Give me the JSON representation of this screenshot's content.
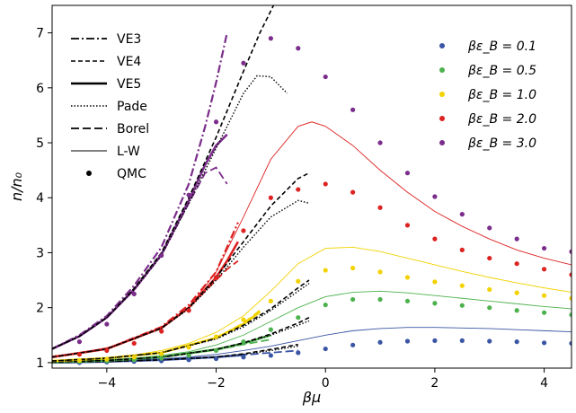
{
  "chart_data": {
    "type": "line",
    "xlabel": "βμ",
    "ylabel": "n/n₀",
    "xlim": [
      -5,
      4.5
    ],
    "ylim": [
      0.9,
      7.5
    ],
    "xticks": [
      -4,
      -2,
      0,
      2,
      4
    ],
    "yticks": [
      1,
      2,
      3,
      4,
      5,
      6,
      7
    ],
    "grid": false,
    "method_legend": {
      "placement": "top-left",
      "entries": [
        {
          "label": "VE3",
          "style": "dashdot"
        },
        {
          "label": "VE4",
          "style": "dashed"
        },
        {
          "label": "VE5",
          "style": "solid-thick"
        },
        {
          "label": "Pade",
          "style": "dotted"
        },
        {
          "label": "Borel",
          "style": "longdash"
        },
        {
          "label": "L-W",
          "style": "solid-thin"
        },
        {
          "label": "QMC",
          "style": "dot"
        }
      ]
    },
    "series_legend": {
      "placement": "top-right",
      "entries": [
        {
          "label": "βε_B = 0.1",
          "color": "#3a55a4"
        },
        {
          "label": "βε_B = 0.5",
          "color": "#4db24d"
        },
        {
          "label": "βε_B = 1.0",
          "color": "#f2d200"
        },
        {
          "label": "βε_B = 2.0",
          "color": "#dd2222"
        },
        {
          "label": "βε_B = 3.0",
          "color": "#7b2d8b"
        }
      ]
    },
    "series": [
      {
        "name": "βε_B = 0.1",
        "color": "#3a55a4",
        "qmc": {
          "x": [
            -4.5,
            -4.0,
            -3.5,
            -3.0,
            -2.5,
            -2.0,
            -1.5,
            -1.0,
            -0.5,
            0.0,
            0.5,
            1.0,
            1.5,
            2.0,
            2.5,
            3.0,
            3.5,
            4.0,
            4.5
          ],
          "y": [
            1.0,
            1.01,
            1.02,
            1.03,
            1.05,
            1.07,
            1.1,
            1.13,
            1.18,
            1.25,
            1.32,
            1.37,
            1.39,
            1.4,
            1.4,
            1.39,
            1.38,
            1.36,
            1.35
          ]
        },
        "lw": {
          "x": [
            -5,
            -4.5,
            -4,
            -3.5,
            -3,
            -2.5,
            -2,
            -1.5,
            -1,
            -0.5,
            0,
            0.5,
            1,
            1.5,
            2,
            2.5,
            3,
            3.5,
            4,
            4.5
          ],
          "y": [
            1.01,
            1.02,
            1.03,
            1.05,
            1.07,
            1.1,
            1.15,
            1.22,
            1.3,
            1.4,
            1.5,
            1.58,
            1.62,
            1.64,
            1.64,
            1.63,
            1.62,
            1.6,
            1.58,
            1.56
          ]
        },
        "ve3": {
          "x": [
            -5,
            -4,
            -3,
            -2,
            -1.5,
            -1,
            -0.5
          ],
          "y": [
            1.0,
            1.02,
            1.05,
            1.11,
            1.17,
            1.25,
            1.35
          ]
        },
        "ve4": {
          "x": [
            -5,
            -4,
            -3,
            -2,
            -1.5,
            -1,
            -0.5
          ],
          "y": [
            1.0,
            1.02,
            1.05,
            1.1,
            1.16,
            1.24,
            1.33
          ]
        },
        "pade": {
          "x": [
            -5,
            -4,
            -3,
            -2,
            -1.5,
            -1,
            -0.5
          ],
          "y": [
            1.0,
            1.02,
            1.05,
            1.1,
            1.15,
            1.22,
            1.3
          ]
        },
        "borel": {
          "x": [
            -5,
            -4,
            -3,
            -2,
            -1.5,
            -1,
            -0.5
          ],
          "y": [
            1.0,
            1.02,
            1.05,
            1.1,
            1.14,
            1.18,
            1.22
          ]
        },
        "ve5": {
          "x": [
            -5,
            -4,
            -3,
            -2,
            -1.5
          ],
          "y": [
            1.0,
            1.02,
            1.05,
            1.1,
            1.14
          ]
        }
      },
      {
        "name": "βε_B = 0.5",
        "color": "#4db24d",
        "qmc": {
          "x": [
            -4.5,
            -4.0,
            -3.5,
            -3.0,
            -2.5,
            -2.0,
            -1.5,
            -1.0,
            -0.5,
            0.0,
            0.5,
            1.0,
            1.5,
            2.0,
            2.5,
            3.0,
            3.5,
            4.0,
            4.5
          ],
          "y": [
            1.02,
            1.03,
            1.05,
            1.08,
            1.13,
            1.22,
            1.38,
            1.6,
            1.82,
            2.05,
            2.15,
            2.15,
            2.12,
            2.08,
            2.04,
            2.0,
            1.95,
            1.91,
            1.87
          ]
        },
        "lw": {
          "x": [
            -5,
            -4.5,
            -4,
            -3.5,
            -3,
            -2.5,
            -2,
            -1.5,
            -1,
            -0.5,
            0,
            0.5,
            1,
            1.5,
            2,
            2.5,
            3,
            3.5,
            4,
            4.5
          ],
          "y": [
            1.02,
            1.03,
            1.05,
            1.08,
            1.13,
            1.2,
            1.32,
            1.5,
            1.75,
            2.0,
            2.2,
            2.28,
            2.3,
            2.27,
            2.22,
            2.17,
            2.12,
            2.07,
            2.02,
            1.98
          ]
        },
        "ve3": {
          "x": [
            -5,
            -4,
            -3,
            -2,
            -1.5,
            -1,
            -0.5,
            -0.3
          ],
          "y": [
            1.01,
            1.04,
            1.1,
            1.25,
            1.38,
            1.55,
            1.75,
            1.85
          ]
        },
        "ve4": {
          "x": [
            -5,
            -4,
            -3,
            -2,
            -1.5,
            -1,
            -0.5,
            -0.3
          ],
          "y": [
            1.01,
            1.04,
            1.1,
            1.24,
            1.36,
            1.52,
            1.72,
            1.82
          ]
        },
        "pade": {
          "x": [
            -5,
            -4,
            -3,
            -2,
            -1.5,
            -1,
            -0.5,
            -0.3
          ],
          "y": [
            1.01,
            1.04,
            1.1,
            1.24,
            1.35,
            1.5,
            1.68,
            1.76
          ]
        },
        "borel": {
          "x": [
            -5,
            -4,
            -3,
            -2,
            -1.5,
            -1
          ],
          "y": [
            1.01,
            1.04,
            1.1,
            1.23,
            1.33,
            1.42
          ]
        },
        "ve5": {
          "x": [
            -5,
            -4,
            -3,
            -2,
            -1.5,
            -1
          ],
          "y": [
            1.01,
            1.04,
            1.1,
            1.24,
            1.35,
            1.5
          ]
        }
      },
      {
        "name": "βε_B = 1.0",
        "color": "#f2d200",
        "qmc": {
          "x": [
            -4.5,
            -4.0,
            -3.5,
            -3.0,
            -2.5,
            -2.0,
            -1.5,
            -1.0,
            -0.5,
            0.0,
            0.5,
            1.0,
            1.5,
            2.0,
            2.5,
            3.0,
            3.5,
            4.0,
            4.5
          ],
          "y": [
            1.04,
            1.06,
            1.1,
            1.16,
            1.28,
            1.47,
            1.78,
            2.12,
            2.48,
            2.68,
            2.72,
            2.65,
            2.55,
            2.47,
            2.4,
            2.33,
            2.27,
            2.22,
            2.17
          ]
        },
        "lw": {
          "x": [
            -5,
            -4.5,
            -4,
            -3.5,
            -3,
            -2.5,
            -2,
            -1.5,
            -1,
            -0.5,
            0,
            0.5,
            1,
            1.5,
            2,
            2.5,
            3,
            3.5,
            4,
            4.5
          ],
          "y": [
            1.04,
            1.06,
            1.09,
            1.14,
            1.22,
            1.35,
            1.55,
            1.85,
            2.3,
            2.8,
            3.08,
            3.1,
            3.02,
            2.9,
            2.78,
            2.66,
            2.55,
            2.45,
            2.36,
            2.28
          ]
        },
        "ve3": {
          "x": [
            -5,
            -4,
            -3,
            -2,
            -1.5,
            -1,
            -0.5,
            -0.3
          ],
          "y": [
            1.03,
            1.08,
            1.18,
            1.45,
            1.7,
            2.02,
            2.4,
            2.55
          ]
        },
        "ve4": {
          "x": [
            -5,
            -4,
            -3,
            -2,
            -1.5,
            -1,
            -0.5,
            -0.3
          ],
          "y": [
            1.03,
            1.08,
            1.18,
            1.44,
            1.68,
            1.98,
            2.36,
            2.5
          ]
        },
        "pade": {
          "x": [
            -5,
            -4,
            -3,
            -2,
            -1.5,
            -1,
            -0.5,
            -0.3
          ],
          "y": [
            1.03,
            1.08,
            1.18,
            1.43,
            1.65,
            1.95,
            2.3,
            2.44
          ]
        },
        "borel": {
          "x": [
            -5,
            -4,
            -3,
            -2,
            -1.5,
            -1.2
          ],
          "y": [
            1.03,
            1.08,
            1.18,
            1.45,
            1.72,
            1.95
          ]
        },
        "ve5": {
          "x": [
            -5,
            -4,
            -3,
            -2,
            -1.5,
            -1.2
          ],
          "y": [
            1.03,
            1.08,
            1.18,
            1.45,
            1.7,
            1.92
          ]
        }
      },
      {
        "name": "βε_B = 2.0",
        "color": "#dd2222",
        "qmc": {
          "x": [
            -4.5,
            -4.0,
            -3.5,
            -3.0,
            -2.5,
            -2.0,
            -1.5,
            -1.0,
            -0.5,
            0.0,
            0.5,
            1.0,
            1.5,
            2.0,
            2.5,
            3.0,
            3.5,
            4.0,
            4.5
          ],
          "y": [
            1.15,
            1.22,
            1.35,
            1.57,
            1.95,
            2.55,
            3.4,
            4.0,
            4.15,
            4.25,
            4.1,
            3.82,
            3.5,
            3.25,
            3.05,
            2.9,
            2.8,
            2.7,
            2.6
          ]
        },
        "lw": {
          "x": [
            -5,
            -4.5,
            -4,
            -3.5,
            -3,
            -2.5,
            -2,
            -1.5,
            -1,
            -0.5,
            -0.25,
            0,
            0.5,
            1,
            1.5,
            2,
            2.5,
            3,
            3.5,
            4,
            4.5
          ],
          "y": [
            1.12,
            1.18,
            1.27,
            1.42,
            1.65,
            2.0,
            2.65,
            3.65,
            4.7,
            5.3,
            5.38,
            5.3,
            4.95,
            4.5,
            4.1,
            3.75,
            3.48,
            3.25,
            3.05,
            2.9,
            2.78
          ]
        },
        "ve3": {
          "x": [
            -5,
            -4,
            -3,
            -2.5,
            -2,
            -1.8,
            -1.6
          ],
          "y": [
            1.1,
            1.25,
            1.65,
            2.05,
            2.65,
            3.1,
            3.55
          ]
        },
        "ve4": {
          "x": [
            -5,
            -4,
            -3,
            -2.5,
            -2,
            -1.5,
            -1,
            -0.5,
            -0.3
          ],
          "y": [
            1.1,
            1.25,
            1.63,
            2.0,
            2.55,
            3.2,
            3.85,
            4.35,
            4.45
          ]
        },
        "pade": {
          "x": [
            -5,
            -4,
            -3,
            -2.5,
            -2,
            -1.5,
            -1,
            -0.5,
            -0.3
          ],
          "y": [
            1.1,
            1.25,
            1.62,
            1.98,
            2.5,
            3.1,
            3.65,
            3.95,
            3.9
          ]
        },
        "borel": {
          "x": [
            -5,
            -4,
            -3,
            -2.5,
            -2,
            -1.8,
            -1.6
          ],
          "y": [
            1.1,
            1.25,
            1.63,
            2.0,
            2.5,
            2.7,
            2.85
          ]
        },
        "ve5": {
          "x": [
            -5,
            -4,
            -3,
            -2.5,
            -2,
            -1.8,
            -1.6
          ],
          "y": [
            1.1,
            1.25,
            1.63,
            2.0,
            2.55,
            2.85,
            3.2
          ]
        }
      },
      {
        "name": "βε_B = 3.0",
        "color": "#7b2d8b",
        "qmc": {
          "x": [
            -4.5,
            -4.0,
            -3.5,
            -3.0,
            -2.5,
            -2.0,
            -1.5,
            -1.0,
            -0.5,
            0.0,
            0.5,
            1.0,
            1.5,
            2.0,
            2.5,
            3.0,
            3.5,
            4.0,
            4.5
          ],
          "y": [
            1.38,
            1.7,
            2.25,
            2.95,
            4.05,
            5.38,
            6.45,
            6.9,
            6.72,
            6.2,
            5.6,
            5.0,
            4.45,
            4.02,
            3.7,
            3.45,
            3.25,
            3.08,
            3.02
          ]
        },
        "ve3": {
          "x": [
            -5,
            -4.5,
            -4,
            -3.5,
            -3,
            -2.5,
            -2.2,
            -2,
            -1.8
          ],
          "y": [
            1.25,
            1.5,
            1.85,
            2.4,
            3.1,
            4.25,
            5.3,
            6.1,
            7.0
          ]
        },
        "ve4": {
          "x": [
            -5,
            -4.5,
            -4,
            -3.5,
            -3,
            -2.5,
            -2,
            -1.5,
            -1.2,
            -0.9
          ],
          "y": [
            1.25,
            1.48,
            1.82,
            2.35,
            3.0,
            4.0,
            5.1,
            6.3,
            7.0,
            7.6
          ]
        },
        "pade": {
          "x": [
            -5,
            -4.5,
            -4,
            -3.5,
            -3,
            -2.5,
            -2,
            -1.5,
            -1.25,
            -1.0,
            -0.7
          ],
          "y": [
            1.25,
            1.48,
            1.82,
            2.33,
            2.95,
            3.9,
            4.9,
            5.9,
            6.22,
            6.2,
            5.9
          ]
        },
        "borel": {
          "x": [
            -5,
            -4.5,
            -4,
            -3.5,
            -3,
            -2.5,
            -2.2,
            -2,
            -1.8
          ],
          "y": [
            1.25,
            1.48,
            1.82,
            2.32,
            2.95,
            3.9,
            4.45,
            4.55,
            4.25
          ]
        },
        "ve5": {
          "x": [
            -5,
            -4.5,
            -4,
            -3.5,
            -3,
            -2.5,
            -2.2,
            -2,
            -1.8
          ],
          "y": [
            1.25,
            1.48,
            1.82,
            2.33,
            2.97,
            3.95,
            4.6,
            4.95,
            5.15
          ]
        }
      }
    ]
  }
}
